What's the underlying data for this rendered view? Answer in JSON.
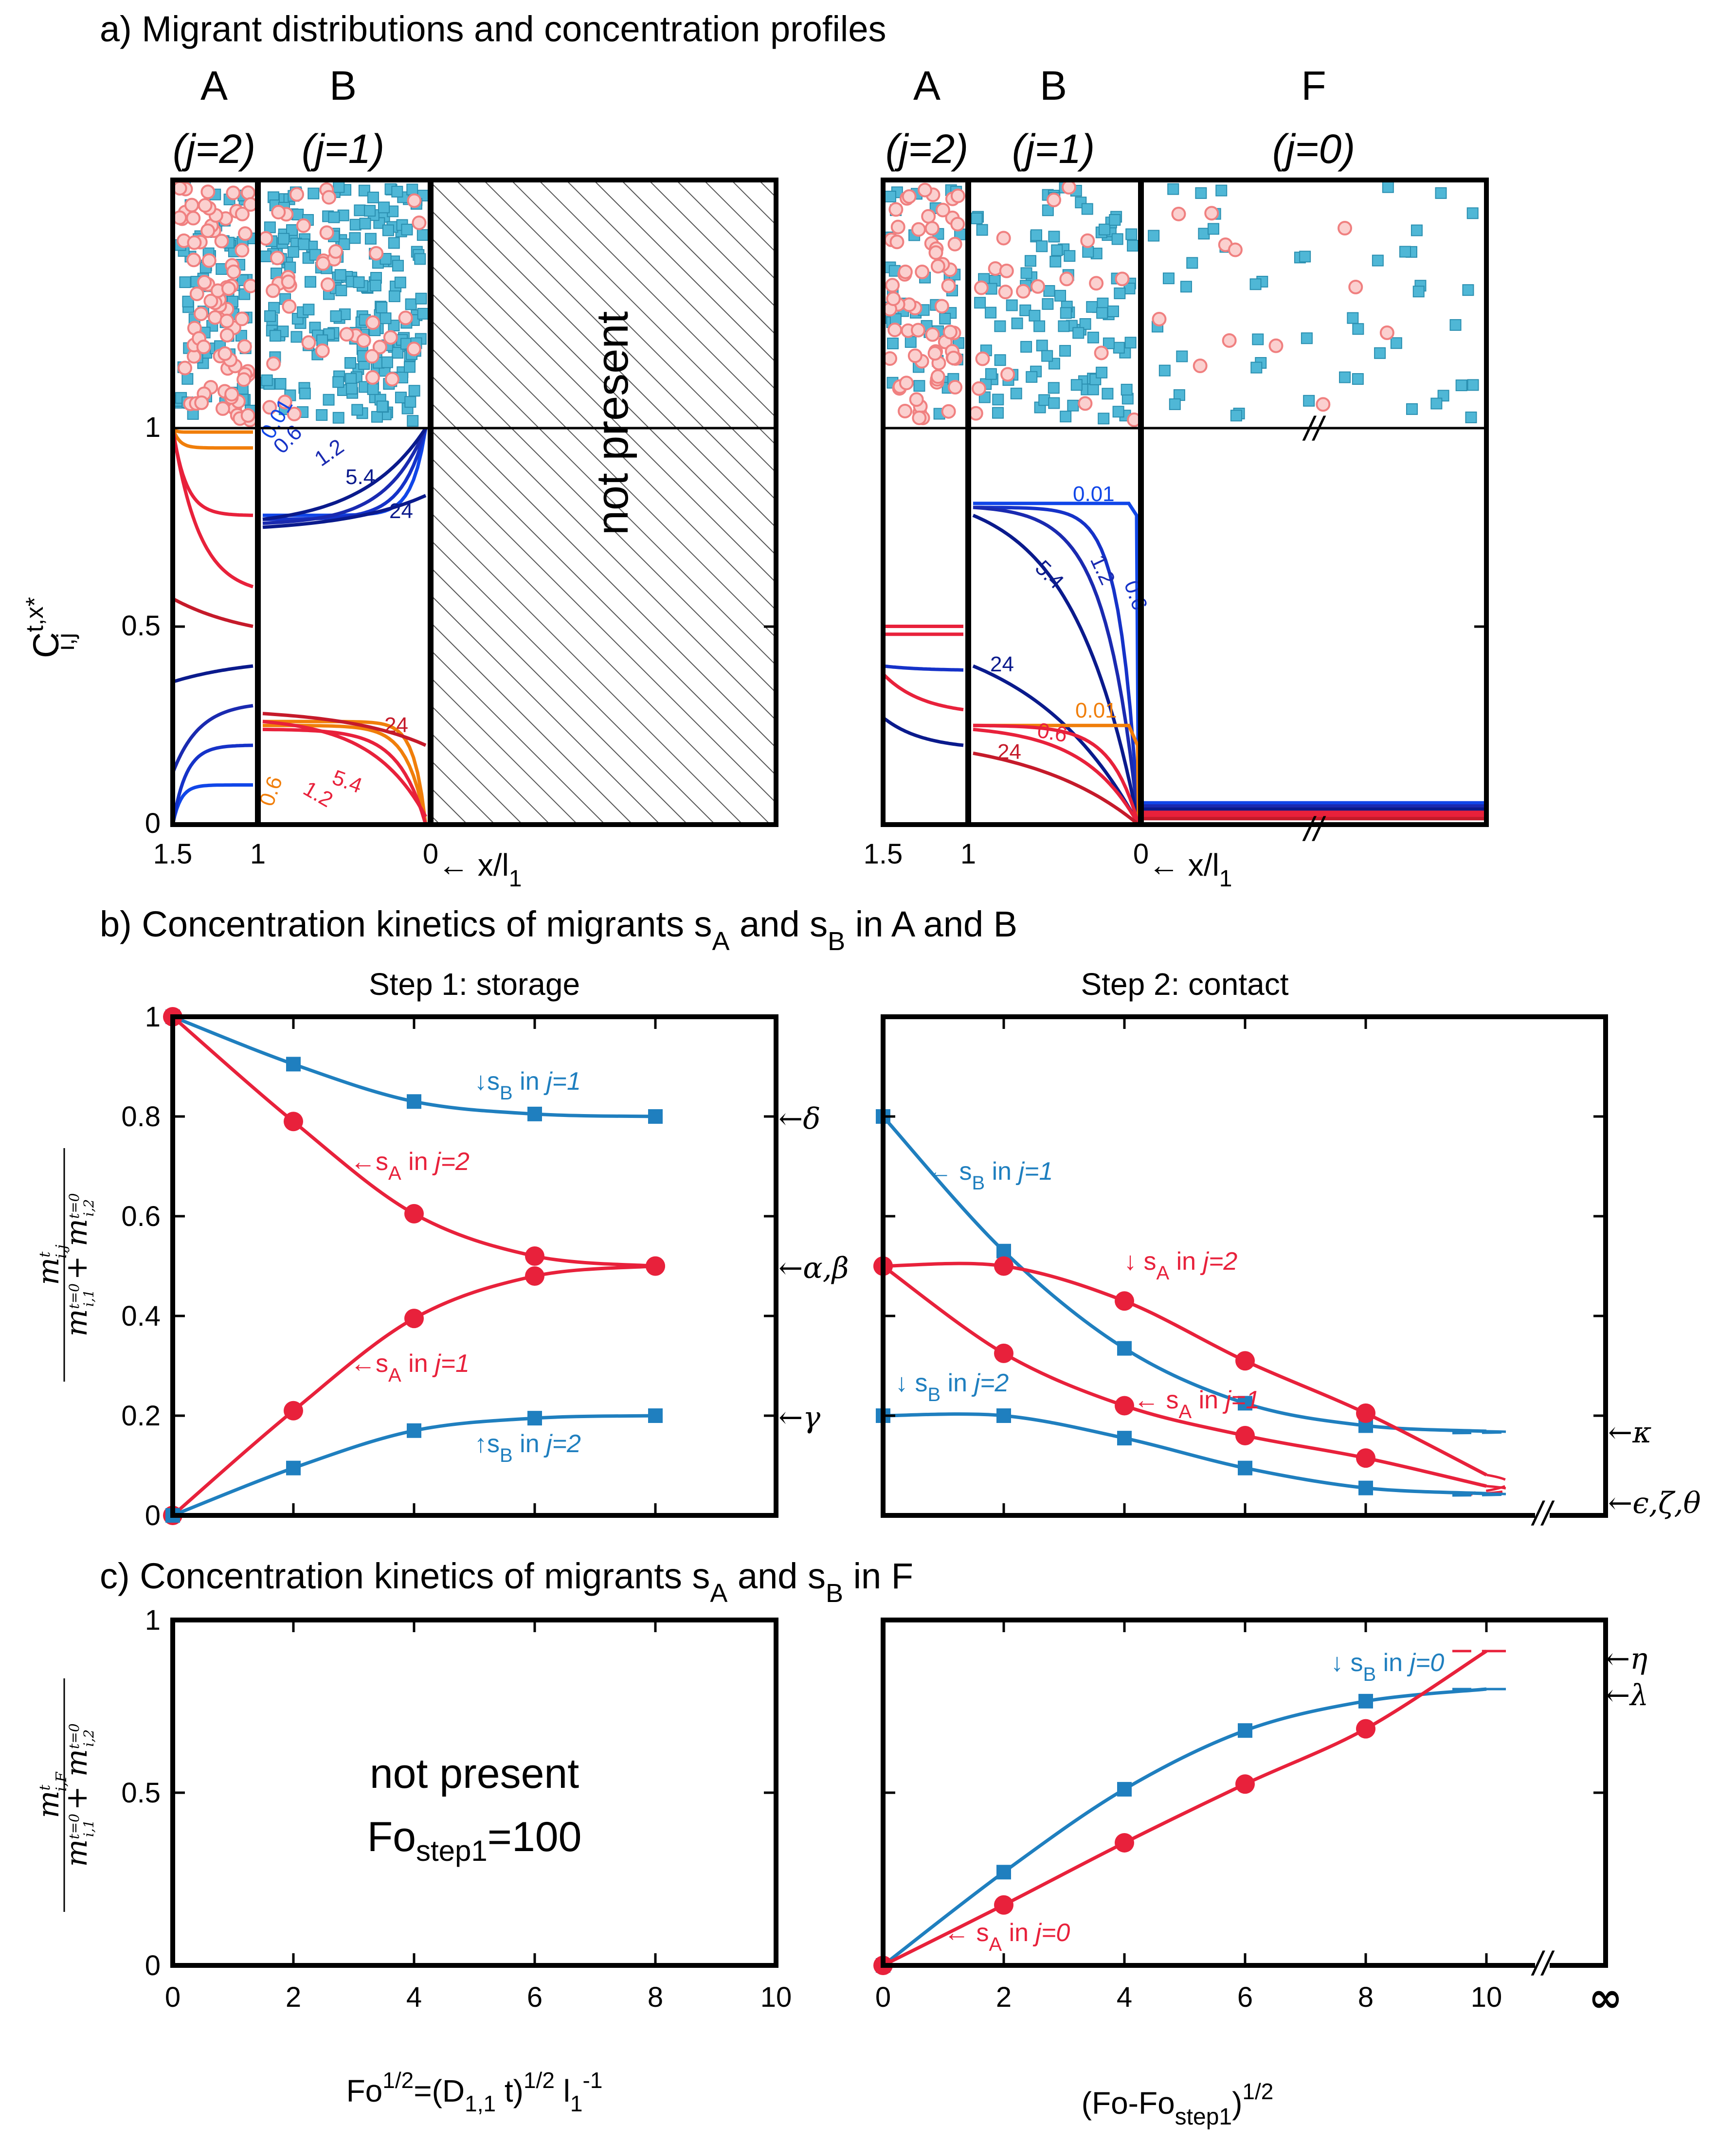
{
  "titles": {
    "a": "a) Migrant distributions and concentration profiles",
    "b_pre": "b) Concentration kinetics of migrants s",
    "b_mid": " and s",
    "b_post": " in A and B",
    "c_pre": "c) Concentration kinetics of migrants s",
    "c_mid": " and s",
    "c_post": " in F",
    "sub_A": "A",
    "sub_B": "B"
  },
  "panel_a": {
    "layers_left": [
      {
        "name": "A",
        "j": "(j=2)"
      },
      {
        "name": "B",
        "j": "(j=1)"
      }
    ],
    "layers_right": [
      {
        "name": "A",
        "j": "(j=2)"
      },
      {
        "name": "B",
        "j": "(j=1)"
      },
      {
        "name": "F",
        "j": "(j=0)"
      }
    ],
    "not_present": "not present",
    "xticks": [
      "1.5",
      "1",
      "0"
    ],
    "xlabel": "← x/l",
    "xlabel_sub": "1",
    "ylabel": "C",
    "ylabel_sup": "t,x*",
    "ylabel_sub": "i,j",
    "yticks": [
      "0",
      "0.5",
      "1"
    ],
    "break_mark": "//",
    "curve_labels_left_blue": [
      "0.01",
      "0.6",
      "1.2",
      "5.4",
      "24"
    ],
    "curve_labels_left_red": [
      "24",
      "5.4",
      "1.2",
      "0.6"
    ],
    "curve_labels_right_blue": [
      "0.01",
      "0.6",
      "1.2",
      "5.4",
      "24"
    ],
    "curve_labels_right_red": [
      "0.01",
      "0.6",
      "24"
    ]
  },
  "colors": {
    "red": "#e8213b",
    "blue": "#1f7fbf",
    "navy": "#0a1a8c",
    "orange": "#f07e0a",
    "particle_red": "#f08080",
    "particle_blue": "#4fb7d6"
  },
  "chart_data": [
    {
      "type": "line",
      "title": "Step 1: storage",
      "xticks": [
        "0",
        "2",
        "4",
        "6",
        "8",
        "10"
      ],
      "yticks": [
        "0",
        "0.2",
        "0.4",
        "0.6",
        "0.8",
        "1"
      ],
      "xlabel": "Fo",
      "xlabel_sup": "1/2",
      "xlabel_rest": "=(D",
      "xlabel_sub1": "1,1",
      "xlabel_rest2": " t)",
      "xlabel_sup2": "1/2",
      "xlabel_rest3": " l",
      "xlabel_sub3": "1",
      "xlabel_sup3": "-1",
      "xlim": [
        0,
        10
      ],
      "ylim": [
        0,
        1
      ],
      "series": [
        {
          "name": "s_B in j=1",
          "color": "#1f7fbf",
          "marker": "square",
          "x": [
            0,
            2,
            4,
            6,
            8
          ],
          "y": [
            1.0,
            0.905,
            0.83,
            0.805,
            0.8
          ]
        },
        {
          "name": "s_A in j=2",
          "color": "#e8213b",
          "marker": "circle",
          "x": [
            0,
            2,
            4,
            6,
            8
          ],
          "y": [
            1.0,
            0.79,
            0.605,
            0.52,
            0.5
          ]
        },
        {
          "name": "s_A in j=1",
          "color": "#e8213b",
          "marker": "circle",
          "x": [
            0,
            2,
            4,
            6,
            8
          ],
          "y": [
            0.0,
            0.21,
            0.395,
            0.48,
            0.5
          ]
        },
        {
          "name": "s_B in j=2",
          "color": "#1f7fbf",
          "marker": "square",
          "x": [
            0,
            2,
            4,
            6,
            8
          ],
          "y": [
            0.0,
            0.095,
            0.17,
            0.195,
            0.2
          ]
        }
      ],
      "annotations": [
        {
          "text": "↓s",
          "sub": "B",
          "rest": " in ",
          "ital": "j=1",
          "color": "#1f7fbf"
        },
        {
          "text": "←s",
          "sub": "A",
          "rest": " in ",
          "ital": "j=2",
          "color": "#e8213b"
        },
        {
          "text": "←s",
          "sub": "A",
          "rest": " in ",
          "ital": "j=1",
          "color": "#e8213b"
        },
        {
          "text": "↑s",
          "sub": "B",
          "rest": " in ",
          "ital": "j=2",
          "color": "#1f7fbf"
        }
      ],
      "right_labels": [
        "←δ",
        "←α,β",
        "←γ"
      ]
    },
    {
      "type": "line",
      "title": "Step 2: contact",
      "xlim": [
        0,
        10
      ],
      "ylim": [
        0,
        1
      ],
      "series": [
        {
          "name": "s_B in j=1",
          "color": "#1f7fbf",
          "marker": "square",
          "x": [
            0,
            2,
            4,
            6,
            8
          ],
          "y": [
            0.8,
            0.53,
            0.335,
            0.225,
            0.18
          ],
          "limit": 0.165
        },
        {
          "name": "s_A in j=2",
          "color": "#e8213b",
          "marker": "circle",
          "x": [
            0,
            2,
            4,
            6,
            8
          ],
          "y": [
            0.5,
            0.5,
            0.43,
            0.31,
            0.205
          ],
          "limit": 0.04
        },
        {
          "name": "s_A in j=1",
          "color": "#e8213b",
          "marker": "circle",
          "x": [
            0,
            2,
            4,
            6,
            8
          ],
          "y": [
            0.5,
            0.325,
            0.22,
            0.16,
            0.115
          ],
          "limit": 0.04
        },
        {
          "name": "s_B in j=2",
          "color": "#1f7fbf",
          "marker": "square",
          "x": [
            0,
            2,
            4,
            6,
            8
          ],
          "y": [
            0.2,
            0.2,
            0.155,
            0.095,
            0.055
          ],
          "limit": 0.04
        }
      ],
      "annotations": [
        {
          "text": "← s",
          "sub": "B",
          "rest": " in ",
          "ital": "j=1",
          "color": "#1f7fbf"
        },
        {
          "text": "↓ s",
          "sub": "A",
          "rest": " in ",
          "ital": "j=2",
          "color": "#e8213b"
        },
        {
          "text": "← s",
          "sub": "A",
          "rest": " in ",
          "ital": "j=1",
          "color": "#e8213b"
        },
        {
          "text": "↓ s",
          "sub": "B",
          "rest": " in ",
          "ital": "j=2",
          "color": "#1f7fbf"
        }
      ],
      "right_labels": [
        "←κ",
        "←ϵ,ζ,θ"
      ]
    },
    {
      "type": "line",
      "title": "",
      "xticks": [
        "0",
        "2",
        "4",
        "6",
        "8",
        "10"
      ],
      "yticks": [
        "0",
        "0.5",
        "1"
      ],
      "xlim": [
        0,
        10
      ],
      "ylim": [
        0,
        1
      ],
      "text_main": "not present",
      "text_fo": "Fo",
      "text_fo_sub": "step1",
      "text_fo_val": "=100",
      "series": []
    },
    {
      "type": "line",
      "title": "",
      "xticks": [
        "0",
        "2",
        "4",
        "6",
        "8",
        "10"
      ],
      "xlabel": "(Fo-Fo",
      "xlabel_sub": "step1",
      "xlabel_post": ")",
      "xlabel_sup": "1/2",
      "infinity": "∞",
      "xlim": [
        0,
        10
      ],
      "ylim": [
        0,
        1
      ],
      "series": [
        {
          "name": "s_B in j=0",
          "color": "#1f7fbf",
          "marker": "square",
          "x": [
            0,
            2,
            4,
            6,
            8
          ],
          "y": [
            0.0,
            0.27,
            0.51,
            0.68,
            0.765
          ],
          "limit": 0.8
        },
        {
          "name": "s_A in j=0",
          "color": "#e8213b",
          "marker": "circle",
          "x": [
            0,
            2,
            4,
            6,
            8
          ],
          "y": [
            0.0,
            0.175,
            0.355,
            0.525,
            0.685
          ],
          "limit": 0.91
        }
      ],
      "annotations": [
        {
          "text": "↓ s",
          "sub": "B",
          "rest": " in ",
          "ital": "j=0",
          "color": "#1f7fbf"
        },
        {
          "text": "← s",
          "sub": "A",
          "rest": " in ",
          "ital": "j=0",
          "color": "#e8213b"
        }
      ],
      "right_labels": [
        "←η",
        "←λ"
      ]
    }
  ],
  "ylabel_bc": {
    "num": "m",
    "num_sup": "t",
    "num_sub": "i,j",
    "num_sub_c": "i,F",
    "den": "m",
    "den_sub1": "i,1",
    "den_sup1": "t=0",
    "plus": " + m",
    "den_sub2": "i,2",
    "den_sup2": "t=0"
  }
}
